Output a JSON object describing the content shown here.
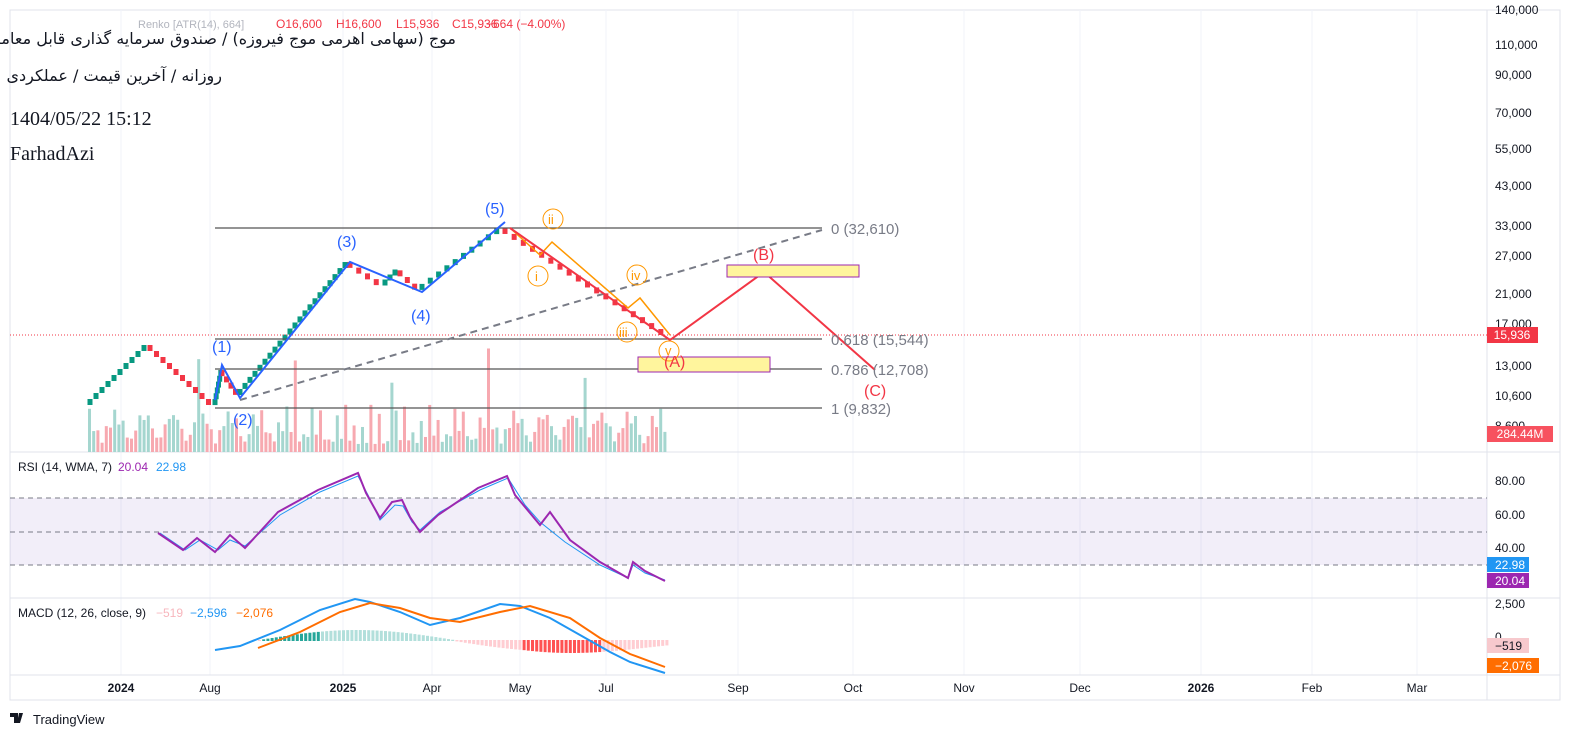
{
  "header": {
    "symbol": "موج (سهامی اهرمی موج فیروزه) / صندوق سرمایه گذاری قابل معامله",
    "subtitle": "روزانه / آخرین قیمت / عملکردی",
    "datetime": "1404/05/22 15:12",
    "author": "FarhadAzi"
  },
  "ohlc": {
    "study": "Renko [ATR(14), 664]",
    "open": "O16,600",
    "high": "H16,600",
    "low": "L15,936",
    "close": "C15,936",
    "change": "−664 (−4.00%)"
  },
  "price_axis": [
    "140,000",
    "110,000",
    "90,000",
    "70,000",
    "55,000",
    "43,000",
    "33,000",
    "27,000",
    "21,000",
    "17,000",
    "13,000",
    "10,600",
    "8,600"
  ],
  "price_badge": "15,936",
  "volume_badge": "284.44M",
  "waves": {
    "w1": "(1)",
    "w2": "(2)",
    "w3": "(3)",
    "w4": "(4)",
    "w5": "(5)",
    "i": "i",
    "ii": "ii",
    "iii": "iii",
    "iv": "iv",
    "v": "v",
    "A": "(A)",
    "B": "(B)",
    "C": "(C)"
  },
  "fib": [
    "0 (32,610)",
    "0.618 (15,544)",
    "0.786 (12,708)",
    "1 (9,832)"
  ],
  "rsi": {
    "title": "RSI (14, WMA, 7)",
    "rsi": "20.04",
    "ma": "22.98",
    "axis": [
      "80.00",
      "60.00",
      "40.00"
    ],
    "badge_ma": "22.98",
    "badge_rsi": "20.04"
  },
  "macd": {
    "title": "MACD (12, 26, close, 9)",
    "hist": "−519",
    "macd": "−2,596",
    "signal": "−2,076",
    "axis": [
      "2,500",
      "0"
    ],
    "badge_hist": "−519",
    "badge_signal": "−2,076"
  },
  "time_axis": [
    "2024",
    "Aug",
    "2025",
    "Apr",
    "May",
    "Jul",
    "Sep",
    "Oct",
    "Nov",
    "Dec",
    "2026",
    "Feb",
    "Mar"
  ],
  "footer": "TradingView"
}
